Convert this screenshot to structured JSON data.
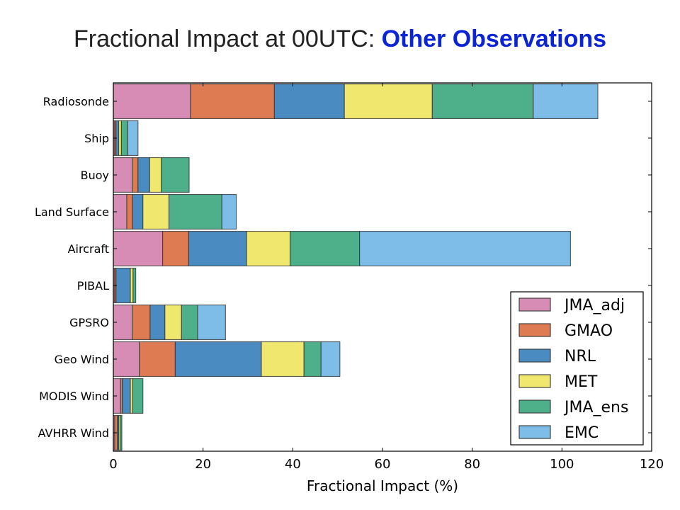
{
  "slide": {
    "title_main": "Fractional Impact at 00UTC: ",
    "title_accent": "Other Observations",
    "accent_color": "#0b24d6"
  },
  "chart_data": {
    "type": "bar",
    "orientation": "horizontal",
    "stacked": true,
    "xlabel": "Fractional Impact (%)",
    "ylabel": "",
    "xlim": [
      0,
      120
    ],
    "xticks": [
      0,
      20,
      40,
      60,
      80,
      100,
      120
    ],
    "grid": false,
    "legend_position": "lower-right",
    "categories": [
      "Radiosonde",
      "Ship",
      "Buoy",
      "Land Surface",
      "Aircraft",
      "PIBAL",
      "GPSRO",
      "Geo Wind",
      "MODIS Wind",
      "AVHRR Wind"
    ],
    "series": [
      {
        "name": "JMA_adj",
        "color": "#d68cb4",
        "values": [
          17.2,
          0.3,
          4.2,
          3.0,
          11.0,
          0.3,
          4.2,
          5.8,
          1.6,
          0.3
        ]
      },
      {
        "name": "GMAO",
        "color": "#de7b52",
        "values": [
          18.7,
          0.3,
          1.3,
          1.3,
          5.8,
          0.3,
          4.0,
          8.0,
          0.4,
          0.6
        ]
      },
      {
        "name": "NRL",
        "color": "#4a8bc2",
        "values": [
          15.6,
          0.6,
          2.6,
          2.3,
          12.9,
          3.2,
          3.3,
          19.2,
          1.8,
          0.3
        ]
      },
      {
        "name": "MET",
        "color": "#f0e86e",
        "values": [
          19.6,
          0.6,
          2.6,
          5.8,
          9.7,
          0.6,
          3.7,
          9.5,
          0.5,
          0.3
        ]
      },
      {
        "name": "JMA_ens",
        "color": "#4db08a",
        "values": [
          22.5,
          1.4,
          6.2,
          11.8,
          15.5,
          0.6,
          3.6,
          3.8,
          2.3,
          0.4
        ]
      },
      {
        "name": "EMC",
        "color": "#7dbde8",
        "values": [
          14.4,
          2.3,
          0.0,
          3.2,
          47.0,
          0.0,
          6.2,
          4.2,
          0.0,
          0.0
        ]
      }
    ]
  }
}
